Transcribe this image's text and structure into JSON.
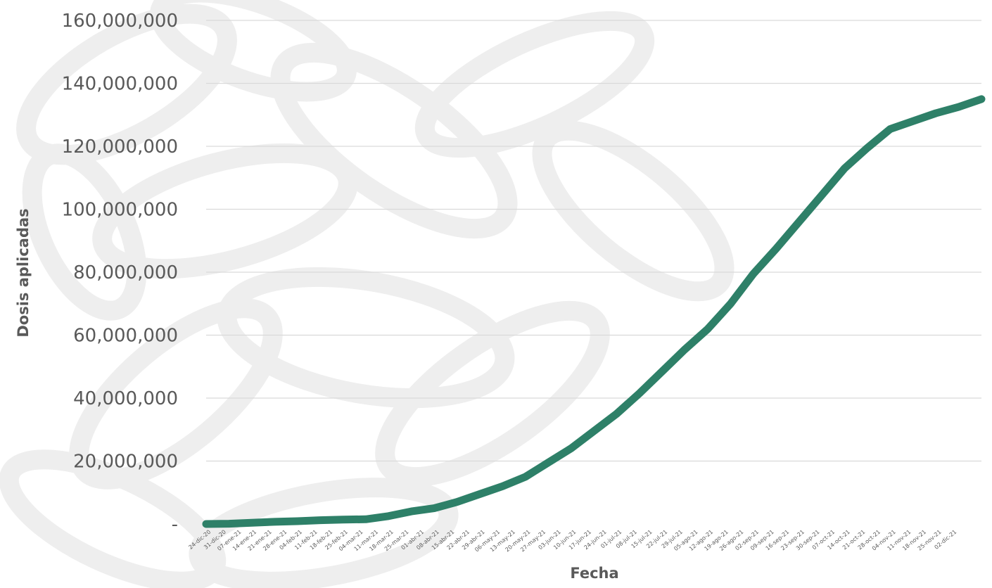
{
  "chart_data": {
    "type": "line",
    "title": "",
    "xlabel": "Fecha",
    "ylabel": "Dosis aplicadas",
    "ylim": [
      0,
      160000000
    ],
    "grid": true,
    "legend": "none",
    "y_ticks": [
      {
        "value": 0,
        "label": "-"
      },
      {
        "value": 20000000,
        "label": "20,000,000"
      },
      {
        "value": 40000000,
        "label": "40,000,000"
      },
      {
        "value": 60000000,
        "label": "60,000,000"
      },
      {
        "value": 80000000,
        "label": "80,000,000"
      },
      {
        "value": 100000000,
        "label": "100,000,000"
      },
      {
        "value": 120000000,
        "label": "120,000,000"
      },
      {
        "value": 140000000,
        "label": "140,000,000"
      },
      {
        "value": 160000000,
        "label": "160,000,000"
      }
    ],
    "x_tick_labels": [
      "24-dic-20",
      "31-dic-20",
      "07-ene-21",
      "14-ene-21",
      "21-ene-21",
      "28-ene-21",
      "04-feb-21",
      "11-feb-21",
      "18-feb-21",
      "25-feb-21",
      "04-mar-21",
      "11-mar-21",
      "18-mar-21",
      "25-mar-21",
      "01-abr-21",
      "08-abr-21",
      "15-abr-21",
      "22-abr-21",
      "29-abr-21",
      "06-may-21",
      "13-may-21",
      "20-may-21",
      "27-may-21",
      "03-jun-21",
      "10-jun-21",
      "17-jun-21",
      "24-jun-21",
      "01-jul-21",
      "08-jul-21",
      "15-jul-21",
      "22-jul-21",
      "29-jul-21",
      "05-ago-21",
      "12-ago-21",
      "19-ago-21",
      "26-ago-21",
      "02-sep-21",
      "09-sep-21",
      "16-sep-21",
      "23-sep-21",
      "30-sep-21",
      "07-oct-21",
      "14-oct-21",
      "21-oct-21",
      "28-oct-21",
      "04-nov-21",
      "11-nov-21",
      "18-nov-21",
      "25-nov-21",
      "02-dic-21"
    ],
    "series": [
      {
        "values": [
          0,
          100000,
          400000,
          700000,
          900000,
          1200000,
          1400000,
          1500000,
          2500000,
          4000000,
          5000000,
          7000000,
          9500000,
          12000000,
          15000000,
          19500000,
          24000000,
          29500000,
          35000000,
          41500000,
          48500000,
          55500000,
          62000000,
          70000000,
          79500000,
          87500000,
          96000000,
          104500000,
          113000000,
          119500000,
          125500000,
          128000000,
          130500000,
          132500000,
          135000000
        ]
      }
    ],
    "series_color": "#2e8068",
    "grid_color": "#d9d9d9"
  }
}
